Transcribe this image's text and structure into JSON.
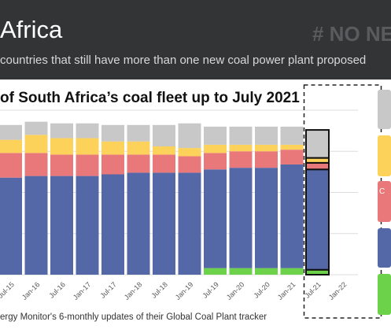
{
  "header": {
    "title": "Africa",
    "tag": "# NO NE",
    "subtitle": "countries that still have more than one new coal power plant proposed"
  },
  "source_note": "ergy Monitor's 6-monthly updates of their Global Coal Plant tracker",
  "legend_label_fragment": "C",
  "colors": {
    "header_bg": "#333436",
    "operating": "#5468a8",
    "construction": "#e9787a",
    "permitted": "#fdd25a",
    "announced": "#c8c8c8",
    "green": "#6bd24a",
    "highlight_fill": "#2c4593"
  },
  "chart_data": {
    "type": "bar",
    "title": "of South Africa’s coal fleet up to July 2021",
    "categories": [
      "",
      "Jul-15",
      "Jan-16",
      "Jul-16",
      "Jan-17",
      "Jul-17",
      "Jan-18",
      "Jul-18",
      "Jan-19",
      "Jul-19",
      "Jan-20",
      "Jul-20",
      "Jan-21",
      "Jul-21",
      "Jan-22"
    ],
    "ylim": [
      0,
      100
    ],
    "series": [
      {
        "color": "#6bd24a",
        "values": [
          0,
          0,
          0,
          0,
          0,
          0,
          0,
          0,
          0,
          4,
          4,
          4,
          4,
          3,
          0
        ]
      },
      {
        "color": "#5468a8",
        "values": [
          59,
          59,
          60,
          60,
          60,
          61,
          62,
          62,
          62,
          60,
          61,
          61,
          63,
          61,
          0
        ]
      },
      {
        "color": "#e9787a",
        "values": [
          15,
          15,
          14,
          13,
          13,
          12,
          11,
          11,
          10,
          10,
          10,
          10,
          9,
          4,
          0
        ]
      },
      {
        "color": "#fdd25a",
        "values": [
          8,
          8,
          11,
          10,
          10,
          8,
          8,
          5,
          5,
          5,
          4,
          4,
          3,
          3,
          0
        ]
      },
      {
        "color": "#c8c8c8",
        "values": [
          9,
          9,
          8,
          9,
          9,
          10,
          10,
          13,
          15,
          11,
          11,
          11,
          11,
          17,
          0
        ]
      }
    ],
    "highlight_category": "Jul-21",
    "grid": true
  }
}
